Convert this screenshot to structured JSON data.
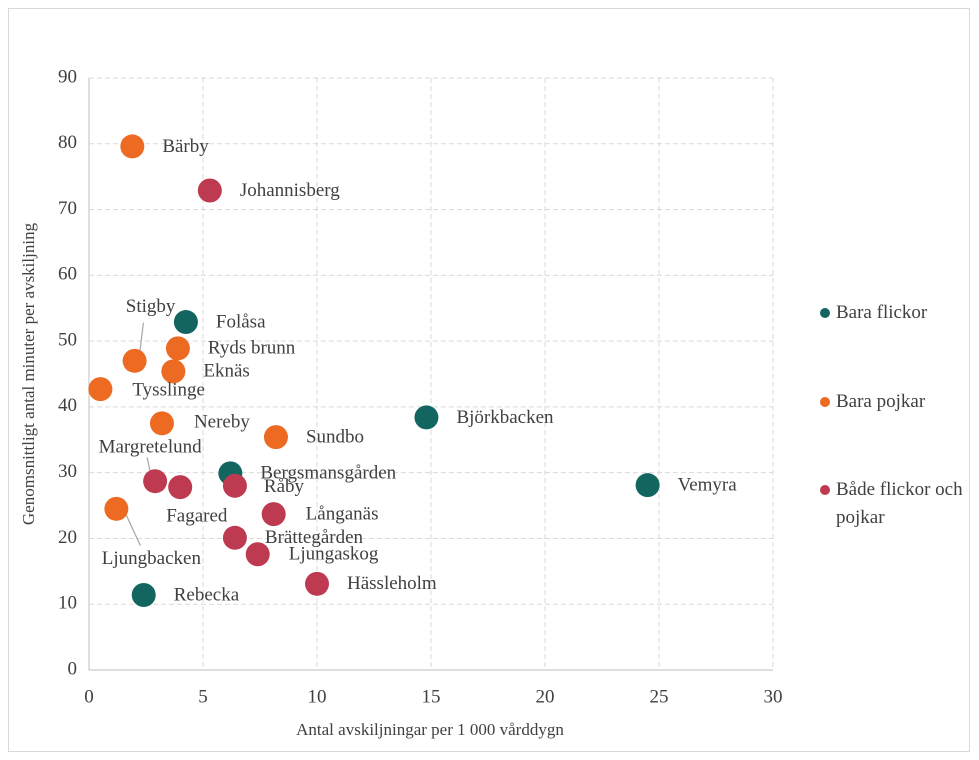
{
  "chart_data": {
    "type": "scatter",
    "xlabel": "Antal avskiljningar per 1 000 vårddygn",
    "ylabel": "Genomsnittligt antal minuter per avskiljning",
    "xlim": [
      0,
      30
    ],
    "xticks": [
      0,
      5,
      10,
      15,
      20,
      25,
      30
    ],
    "ylim": [
      0,
      90
    ],
    "yticks": [
      0,
      10,
      20,
      30,
      40,
      50,
      60,
      70,
      80,
      90
    ],
    "grid": true,
    "legend": "right",
    "series": [
      {
        "name": "Bara flickor",
        "color": "#13665f",
        "labels": [
          "Folåsa",
          "Björkbacken",
          "Bergsmansgården",
          "Vemyra",
          "Rebecka"
        ],
        "x": [
          4.25,
          14.8,
          6.2,
          24.5,
          2.4
        ],
        "values": [
          52.9,
          38.4,
          29.9,
          28.1,
          11.4
        ]
      },
      {
        "name": "Bara pojkar",
        "color": "#ec6a22",
        "labels": [
          "Bärby",
          "Stigby",
          "Ryds brunn",
          "Eknäs",
          "Tysslinge",
          "Nereby",
          "Sundbo",
          "Ljungbacken"
        ],
        "x": [
          1.9,
          2.0,
          3.9,
          3.7,
          0.5,
          3.2,
          8.2,
          1.2
        ],
        "values": [
          79.6,
          47.0,
          48.9,
          45.4,
          42.7,
          37.5,
          35.4,
          24.5
        ]
      },
      {
        "name": "Både flickor och pojkar",
        "color": "#be3a50",
        "labels": [
          "Johannisberg",
          "Margretelund",
          "Fagared",
          "Råby",
          "Långanäs",
          "Brättegården",
          "Ljungaskog",
          "Hässleholm"
        ],
        "x": [
          5.3,
          2.9,
          4.0,
          6.4,
          8.1,
          6.4,
          7.4,
          10.0
        ],
        "values": [
          72.9,
          28.7,
          27.8,
          28.0,
          23.7,
          20.1,
          17.6,
          13.1
        ]
      }
    ]
  }
}
